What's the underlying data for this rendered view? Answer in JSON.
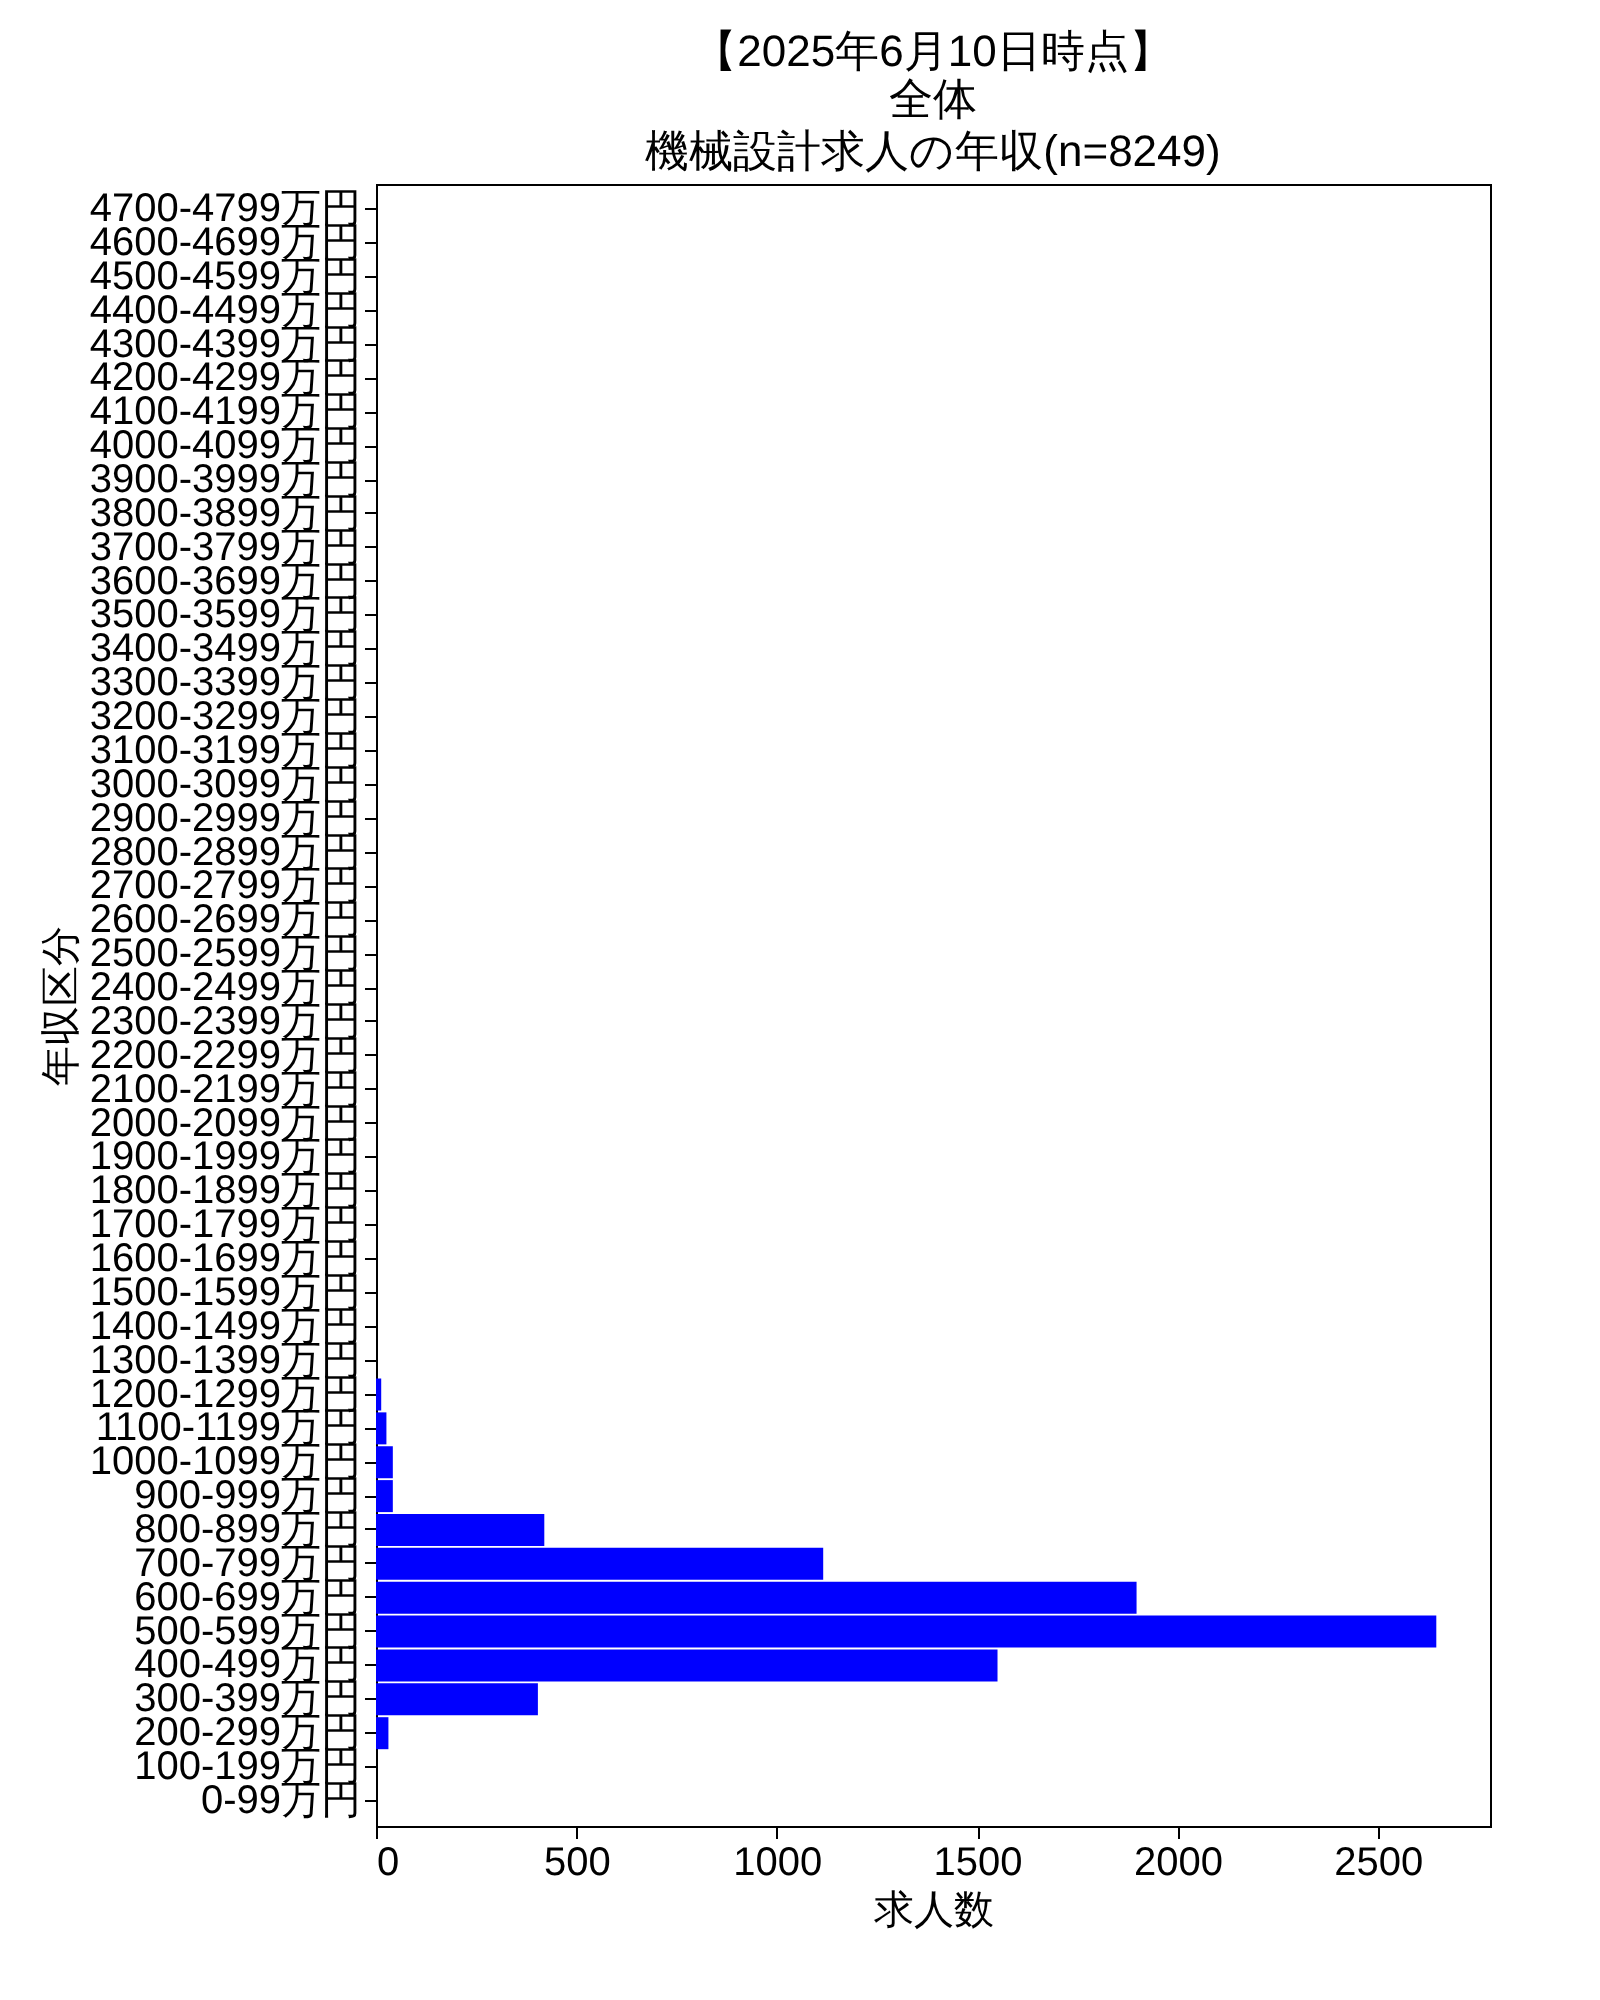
{
  "chart_data": {
    "type": "bar",
    "orientation": "horizontal",
    "title": "【2025年6月10日時点】",
    "subtitle": "全体",
    "annotations": [
      "機械設計求人の年収(n=8249)"
    ],
    "xlabel": "求人数",
    "ylabel": "年収区分",
    "categories": [
      "4700-4799万円",
      "4600-4699万円",
      "4500-4599万円",
      "4400-4499万円",
      "4300-4399万円",
      "4200-4299万円",
      "4100-4199万円",
      "4000-4099万円",
      "3900-3999万円",
      "3800-3899万円",
      "3700-3799万円",
      "3600-3699万円",
      "3500-3599万円",
      "3400-3499万円",
      "3300-3399万円",
      "3200-3299万円",
      "3100-3199万円",
      "3000-3099万円",
      "2900-2999万円",
      "2800-2899万円",
      "2700-2799万円",
      "2600-2699万円",
      "2500-2599万円",
      "2400-2499万円",
      "2300-2399万円",
      "2200-2299万円",
      "2100-2199万円",
      "2000-2099万円",
      "1900-1999万円",
      "1800-1899万円",
      "1700-1799万円",
      "1600-1699万円",
      "1500-1599万円",
      "1400-1499万円",
      "1300-1399万円",
      "1200-1299万円",
      "1100-1199万円",
      "1000-1099万円",
      "900-999万円",
      "800-899万円",
      "700-799万円",
      "600-699万円",
      "500-599万円",
      "400-499万円",
      "300-399万円",
      "200-299万円",
      "100-199万円",
      "0-99万円"
    ],
    "values": [
      0,
      0,
      0,
      0,
      0,
      0,
      0,
      0,
      0,
      0,
      0,
      0,
      0,
      0,
      0,
      0,
      0,
      0,
      0,
      0,
      0,
      0,
      0,
      0,
      0,
      0,
      0,
      0,
      0,
      0,
      0,
      0,
      0,
      0,
      0,
      13,
      26,
      42,
      42,
      420,
      1116,
      1898,
      2646,
      1551,
      404,
      31,
      0,
      0
    ],
    "color": "#0000ff",
    "xlim": [
      0,
      2780
    ],
    "xticks": [
      0,
      500,
      1000,
      1500,
      2000,
      2500
    ],
    "grid": false
  }
}
